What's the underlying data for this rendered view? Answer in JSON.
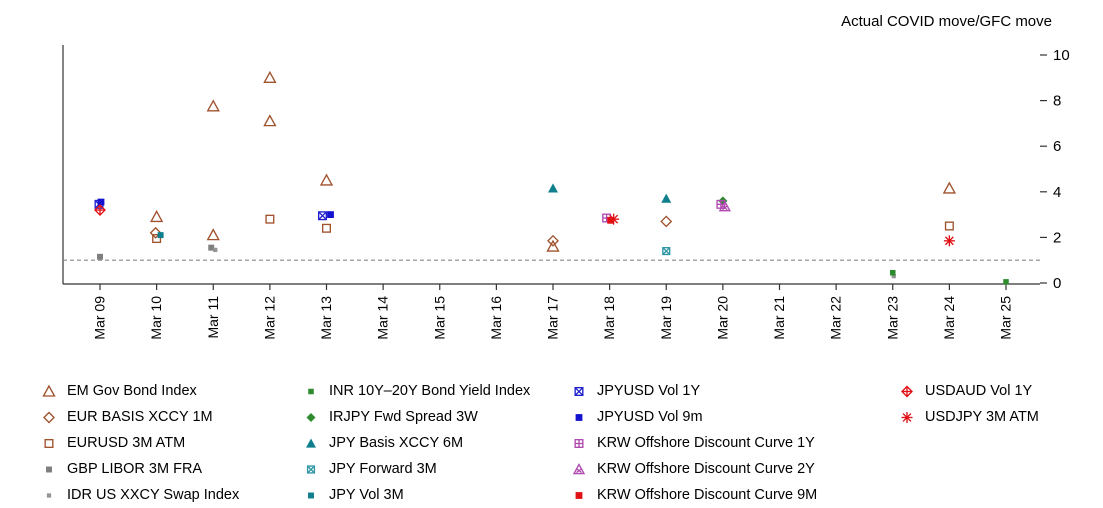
{
  "chart_data": {
    "type": "scatter",
    "title": "Actual COVID move/GFC move",
    "x_categories": [
      "Mar 09",
      "Mar 10",
      "Mar 11",
      "Mar 12",
      "Mar 13",
      "Mar 14",
      "Mar 15",
      "Mar 16",
      "Mar 17",
      "Mar 18",
      "Mar 19",
      "Mar 20",
      "Mar 21",
      "Mar 22",
      "Mar 23",
      "Mar 24",
      "Mar 25"
    ],
    "ylim": [
      0,
      10
    ],
    "yticks": [
      0,
      2,
      4,
      6,
      8,
      10
    ],
    "reference_line_y": 1,
    "reference_line_color": "#888888",
    "axis_color": "#333333",
    "legend_column_breaks": [
      5,
      10,
      15,
      17
    ],
    "series": [
      {
        "name": "EM Gov Bond Index",
        "marker": "triangle-open",
        "color": "#a0522d",
        "size": 11,
        "points": [
          {
            "x": "Mar 10",
            "y": 2.9
          },
          {
            "x": "Mar 11",
            "y": 7.75
          },
          {
            "x": "Mar 11",
            "y": 2.1
          },
          {
            "x": "Mar 12",
            "y": 9.0
          },
          {
            "x": "Mar 12",
            "y": 7.1
          },
          {
            "x": "Mar 13",
            "y": 4.5
          },
          {
            "x": "Mar 17",
            "y": 1.6
          },
          {
            "x": "Mar 24",
            "y": 4.15
          }
        ]
      },
      {
        "name": "EUR BASIS XCCY 1M",
        "marker": "diamond-open",
        "color": "#a0522d",
        "size": 10,
        "points": [
          {
            "x": "Mar 10",
            "y": 2.2,
            "dx": -1
          },
          {
            "x": "Mar 17",
            "y": 1.85
          },
          {
            "x": "Mar 19",
            "y": 2.7
          }
        ]
      },
      {
        "name": "EURUSD 3M ATM",
        "marker": "square-open",
        "color": "#a0522d",
        "size": 9,
        "points": [
          {
            "x": "Mar 10",
            "y": 1.95
          },
          {
            "x": "Mar 12",
            "y": 2.8
          },
          {
            "x": "Mar 13",
            "y": 2.4
          },
          {
            "x": "Mar 24",
            "y": 2.5
          }
        ]
      },
      {
        "name": "GBP LIBOR 3M FRA",
        "marker": "square-filled",
        "color": "#7f7f7f",
        "size": 7,
        "points": [
          {
            "x": "Mar 09",
            "y": 1.15
          },
          {
            "x": "Mar 11",
            "y": 1.55,
            "dx": -2
          }
        ]
      },
      {
        "name": "IDR US XXCY Swap Index",
        "marker": "square-filled",
        "color": "#949494",
        "size": 5,
        "points": [
          {
            "x": "Mar 11",
            "y": 1.45,
            "dx": 2
          },
          {
            "x": "Mar 23",
            "y": 0.3,
            "dx": 1
          }
        ]
      },
      {
        "name": "INR 10Y–20Y Bond Yield Index",
        "marker": "square-filled",
        "color": "#2e8b2e",
        "size": 6.5,
        "points": [
          {
            "x": "Mar 23",
            "y": 0.45
          },
          {
            "x": "Mar 25",
            "y": 0.05
          }
        ]
      },
      {
        "name": "IRJPY Fwd Spread 3W",
        "marker": "diamond-filled",
        "color": "#2e8b2e",
        "size": 9,
        "points": [
          {
            "x": "Mar 20",
            "y": 3.6
          }
        ]
      },
      {
        "name": "JPY Basis XCCY 6M",
        "marker": "triangle-filled",
        "color": "#0f7f8e",
        "size": 10,
        "points": [
          {
            "x": "Mar 17",
            "y": 4.15
          },
          {
            "x": "Mar 19",
            "y": 3.7
          }
        ]
      },
      {
        "name": "JPY Forward 3M",
        "marker": "square-x",
        "color": "#2f96a5",
        "size": 8,
        "points": [
          {
            "x": "Mar 19",
            "y": 1.4
          }
        ]
      },
      {
        "name": "JPY Vol 3M",
        "marker": "square-filled",
        "color": "#0f7f8e",
        "size": 7,
        "points": [
          {
            "x": "Mar 10",
            "y": 2.1,
            "dx": 4
          }
        ]
      },
      {
        "name": "JPYUSD Vol 1Y",
        "marker": "square-x",
        "color": "#2020d0",
        "size": 9,
        "points": [
          {
            "x": "Mar 09",
            "y": 3.45,
            "dx": -1
          },
          {
            "x": "Mar 13",
            "y": 2.95,
            "dx": -4
          }
        ]
      },
      {
        "name": "JPYUSD Vol 9m",
        "marker": "square-filled",
        "color": "#1212cf",
        "size": 8,
        "points": [
          {
            "x": "Mar 09",
            "y": 3.55,
            "dx": 1
          },
          {
            "x": "Mar 13",
            "y": 3.0,
            "dx": 4
          }
        ]
      },
      {
        "name": "KRW Offshore Discount Curve 1Y",
        "marker": "square-plus",
        "color": "#b04ab0",
        "size": 9,
        "points": [
          {
            "x": "Mar 18",
            "y": 2.85,
            "dx": -3
          },
          {
            "x": "Mar 20",
            "y": 3.45,
            "dx": -2
          }
        ]
      },
      {
        "name": "KRW Offshore Discount Curve 2Y",
        "marker": "triangle-x",
        "color": "#b04ab0",
        "size": 10,
        "points": [
          {
            "x": "Mar 20",
            "y": 3.35,
            "dx": 2
          }
        ]
      },
      {
        "name": "KRW Offshore Discount Curve 9M",
        "marker": "square-filled",
        "color": "#e01015",
        "size": 8,
        "points": [
          {
            "x": "Mar 18",
            "y": 2.75,
            "dx": 1
          }
        ]
      },
      {
        "name": "USDAUD Vol 1Y",
        "marker": "diamond-plus",
        "color": "#e01015",
        "size": 10,
        "points": [
          {
            "x": "Mar 09",
            "y": 3.2
          }
        ]
      },
      {
        "name": "USDJPY 3M ATM",
        "marker": "asterisk",
        "color": "#e01015",
        "size": 11,
        "points": [
          {
            "x": "Mar 18",
            "y": 2.8,
            "dx": 4
          },
          {
            "x": "Mar 24",
            "y": 1.85
          }
        ]
      }
    ]
  }
}
